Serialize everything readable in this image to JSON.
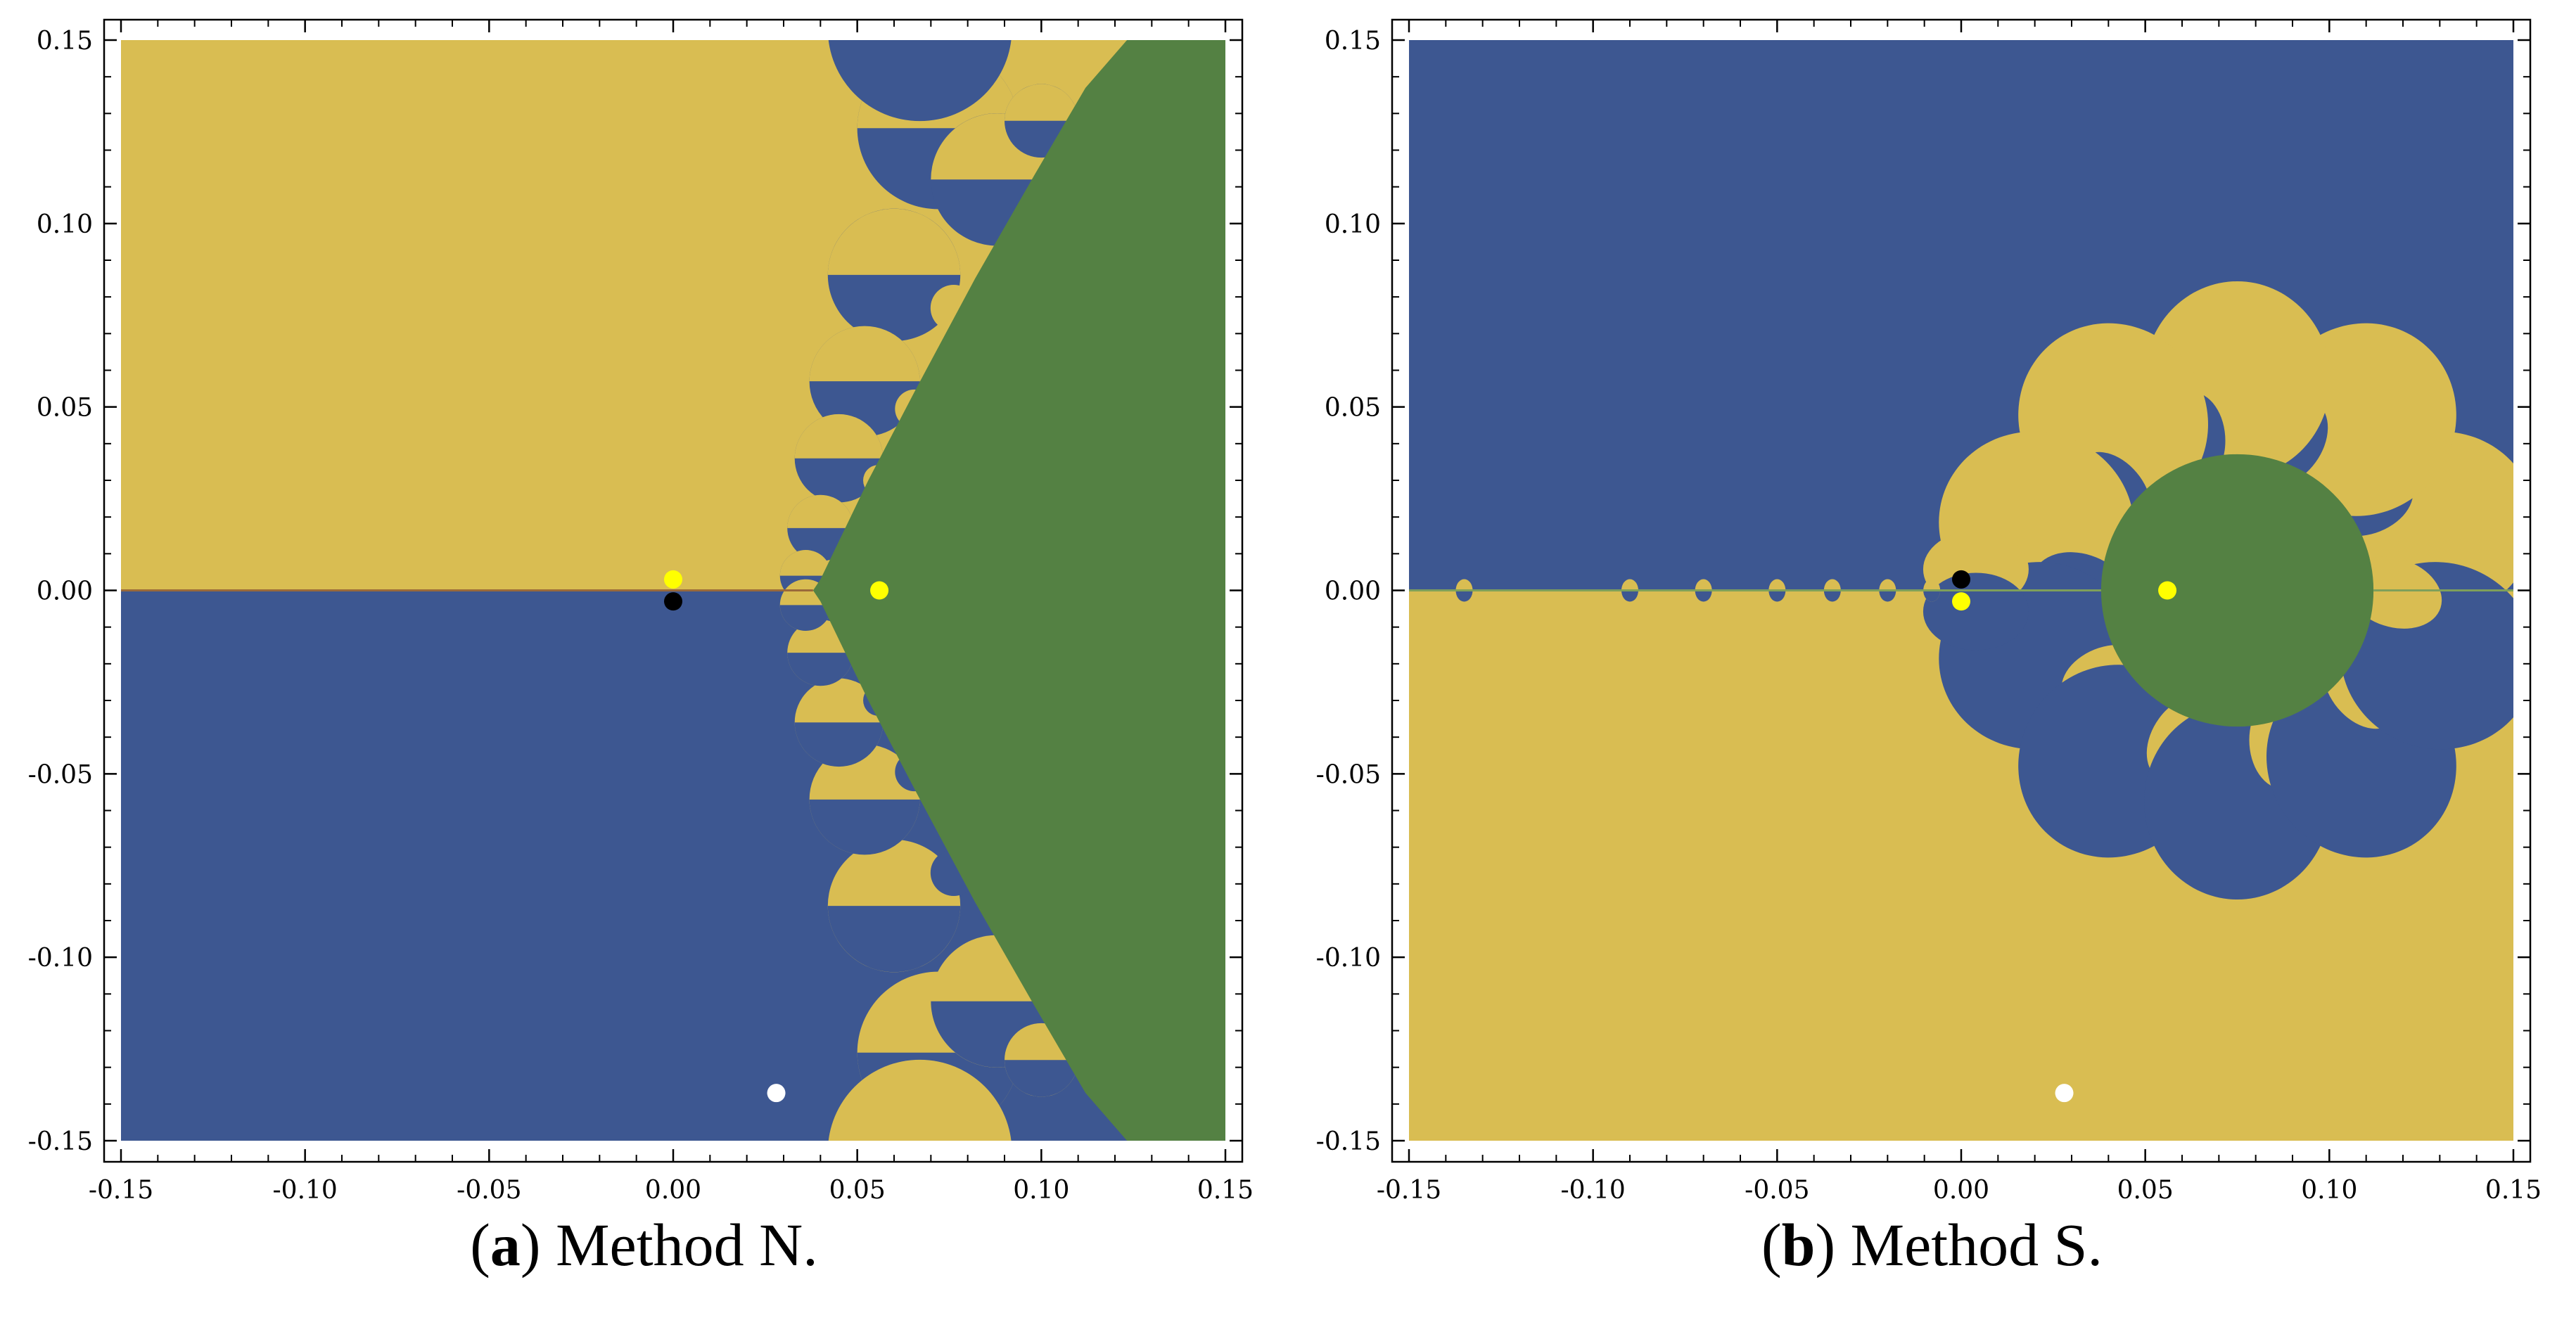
{
  "colors": {
    "yellow_basin": "#D9BD52",
    "blue_basin": "#3D5791",
    "green_basin": "#548143",
    "axis": "#000000",
    "point_yellow": "#FFFF00",
    "point_black": "#000000",
    "point_white": "#FFFFFF"
  },
  "chart_data": [
    {
      "type": "heatmap",
      "title": "",
      "xlabel": "",
      "ylabel": "",
      "xlim": [
        -0.15,
        0.15
      ],
      "ylim": [
        -0.15,
        0.15
      ],
      "x_ticks": [
        -0.15,
        -0.1,
        -0.05,
        0.0,
        0.05,
        0.1,
        0.15
      ],
      "y_ticks": [
        -0.15,
        -0.1,
        -0.05,
        0.0,
        0.05,
        0.1,
        0.15
      ],
      "x_tick_labels": [
        "-0.15",
        "-0.10",
        "-0.05",
        "0.00",
        "0.05",
        "0.10",
        "0.15"
      ],
      "y_tick_labels": [
        "-0.15",
        "-0.10",
        "-0.05",
        "0.00",
        "0.05",
        "0.10",
        "0.15"
      ],
      "caption_letter": "a",
      "caption_text": " Method N.",
      "regions": [
        {
          "name": "upper-half",
          "color": "yellow"
        },
        {
          "name": "lower-half",
          "color": "blue"
        },
        {
          "name": "right-region",
          "color": "green"
        }
      ],
      "points": [
        {
          "x": 0.0,
          "y": 0.003,
          "color": "yellow"
        },
        {
          "x": 0.0,
          "y": -0.003,
          "color": "black"
        },
        {
          "x": 0.056,
          "y": 0.0,
          "color": "yellow"
        },
        {
          "x": 0.028,
          "y": -0.137,
          "color": "white"
        }
      ]
    },
    {
      "type": "heatmap",
      "title": "",
      "xlabel": "",
      "ylabel": "",
      "xlim": [
        -0.15,
        0.15
      ],
      "ylim": [
        -0.15,
        0.15
      ],
      "x_ticks": [
        -0.15,
        -0.1,
        -0.05,
        0.0,
        0.05,
        0.1,
        0.15
      ],
      "y_ticks": [
        -0.15,
        -0.1,
        -0.05,
        0.0,
        0.05,
        0.1,
        0.15
      ],
      "x_tick_labels": [
        "-0.15",
        "-0.10",
        "-0.05",
        "0.00",
        "0.05",
        "0.10",
        "0.15"
      ],
      "y_tick_labels": [
        "-0.15",
        "-0.10",
        "-0.05",
        "0.00",
        "0.05",
        "0.10",
        "0.15"
      ],
      "caption_letter": "b",
      "caption_text": " Method S.",
      "regions": [
        {
          "name": "upper-half",
          "color": "blue"
        },
        {
          "name": "lower-half",
          "color": "yellow"
        },
        {
          "name": "central-disk",
          "color": "green",
          "center": [
            0.075,
            0.0
          ],
          "radius": 0.037
        }
      ],
      "points": [
        {
          "x": 0.0,
          "y": 0.003,
          "color": "black"
        },
        {
          "x": 0.0,
          "y": -0.003,
          "color": "yellow"
        },
        {
          "x": 0.056,
          "y": 0.0,
          "color": "yellow"
        },
        {
          "x": 0.028,
          "y": -0.137,
          "color": "white"
        }
      ]
    }
  ]
}
